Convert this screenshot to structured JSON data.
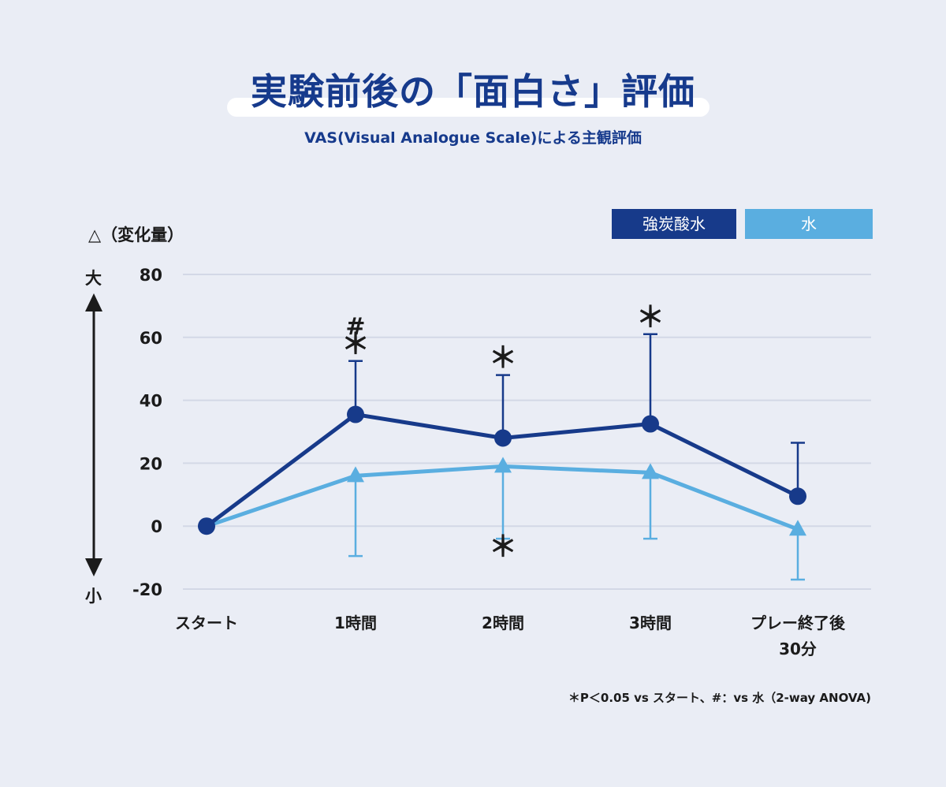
{
  "title": "実験前後の「面白さ」評価",
  "subtitle": "VAS(Visual Analogue Scale)による主観評価",
  "footnote": "＊P＜0.05 vs スタート、#：vs 水（2-way ANOVA)",
  "axis": {
    "unit_label": "△（変化量）",
    "top_label": "大",
    "bottom_label": "小"
  },
  "colors": {
    "soda": "#173a8a",
    "water": "#5aaee0",
    "grid": "#d3d8e6"
  },
  "chart_data": {
    "type": "line",
    "categories": [
      "スタート",
      "1時間",
      "2時間",
      "3時間",
      "プレー終了後\n30分"
    ],
    "ylim": [
      -20,
      80
    ],
    "yticks": [
      80,
      60,
      40,
      20,
      0,
      -20
    ],
    "grid": true,
    "legend_position": "top-right",
    "series": [
      {
        "name": "強炭酸水",
        "marker": "circle",
        "values": [
          0,
          35.5,
          28,
          32.5,
          9.5
        ],
        "error_upper": [
          null,
          52.5,
          48,
          61,
          26.5
        ]
      },
      {
        "name": "水",
        "marker": "triangle",
        "values": [
          0,
          16,
          19,
          17,
          -1
        ],
        "error_lower": [
          null,
          -9.5,
          -4,
          -4,
          -17
        ]
      }
    ],
    "annotations": [
      {
        "category": 1,
        "y": 61,
        "text": "#",
        "size": 30
      },
      {
        "category": 1,
        "y": 55,
        "text": "＊",
        "size": 36
      },
      {
        "category": 2,
        "y": 50.5,
        "text": "＊",
        "size": 36
      },
      {
        "category": 3,
        "y": 63.5,
        "text": "＊",
        "size": 36
      },
      {
        "category": 2,
        "y": -9.5,
        "text": "＊",
        "size": 36
      }
    ]
  }
}
